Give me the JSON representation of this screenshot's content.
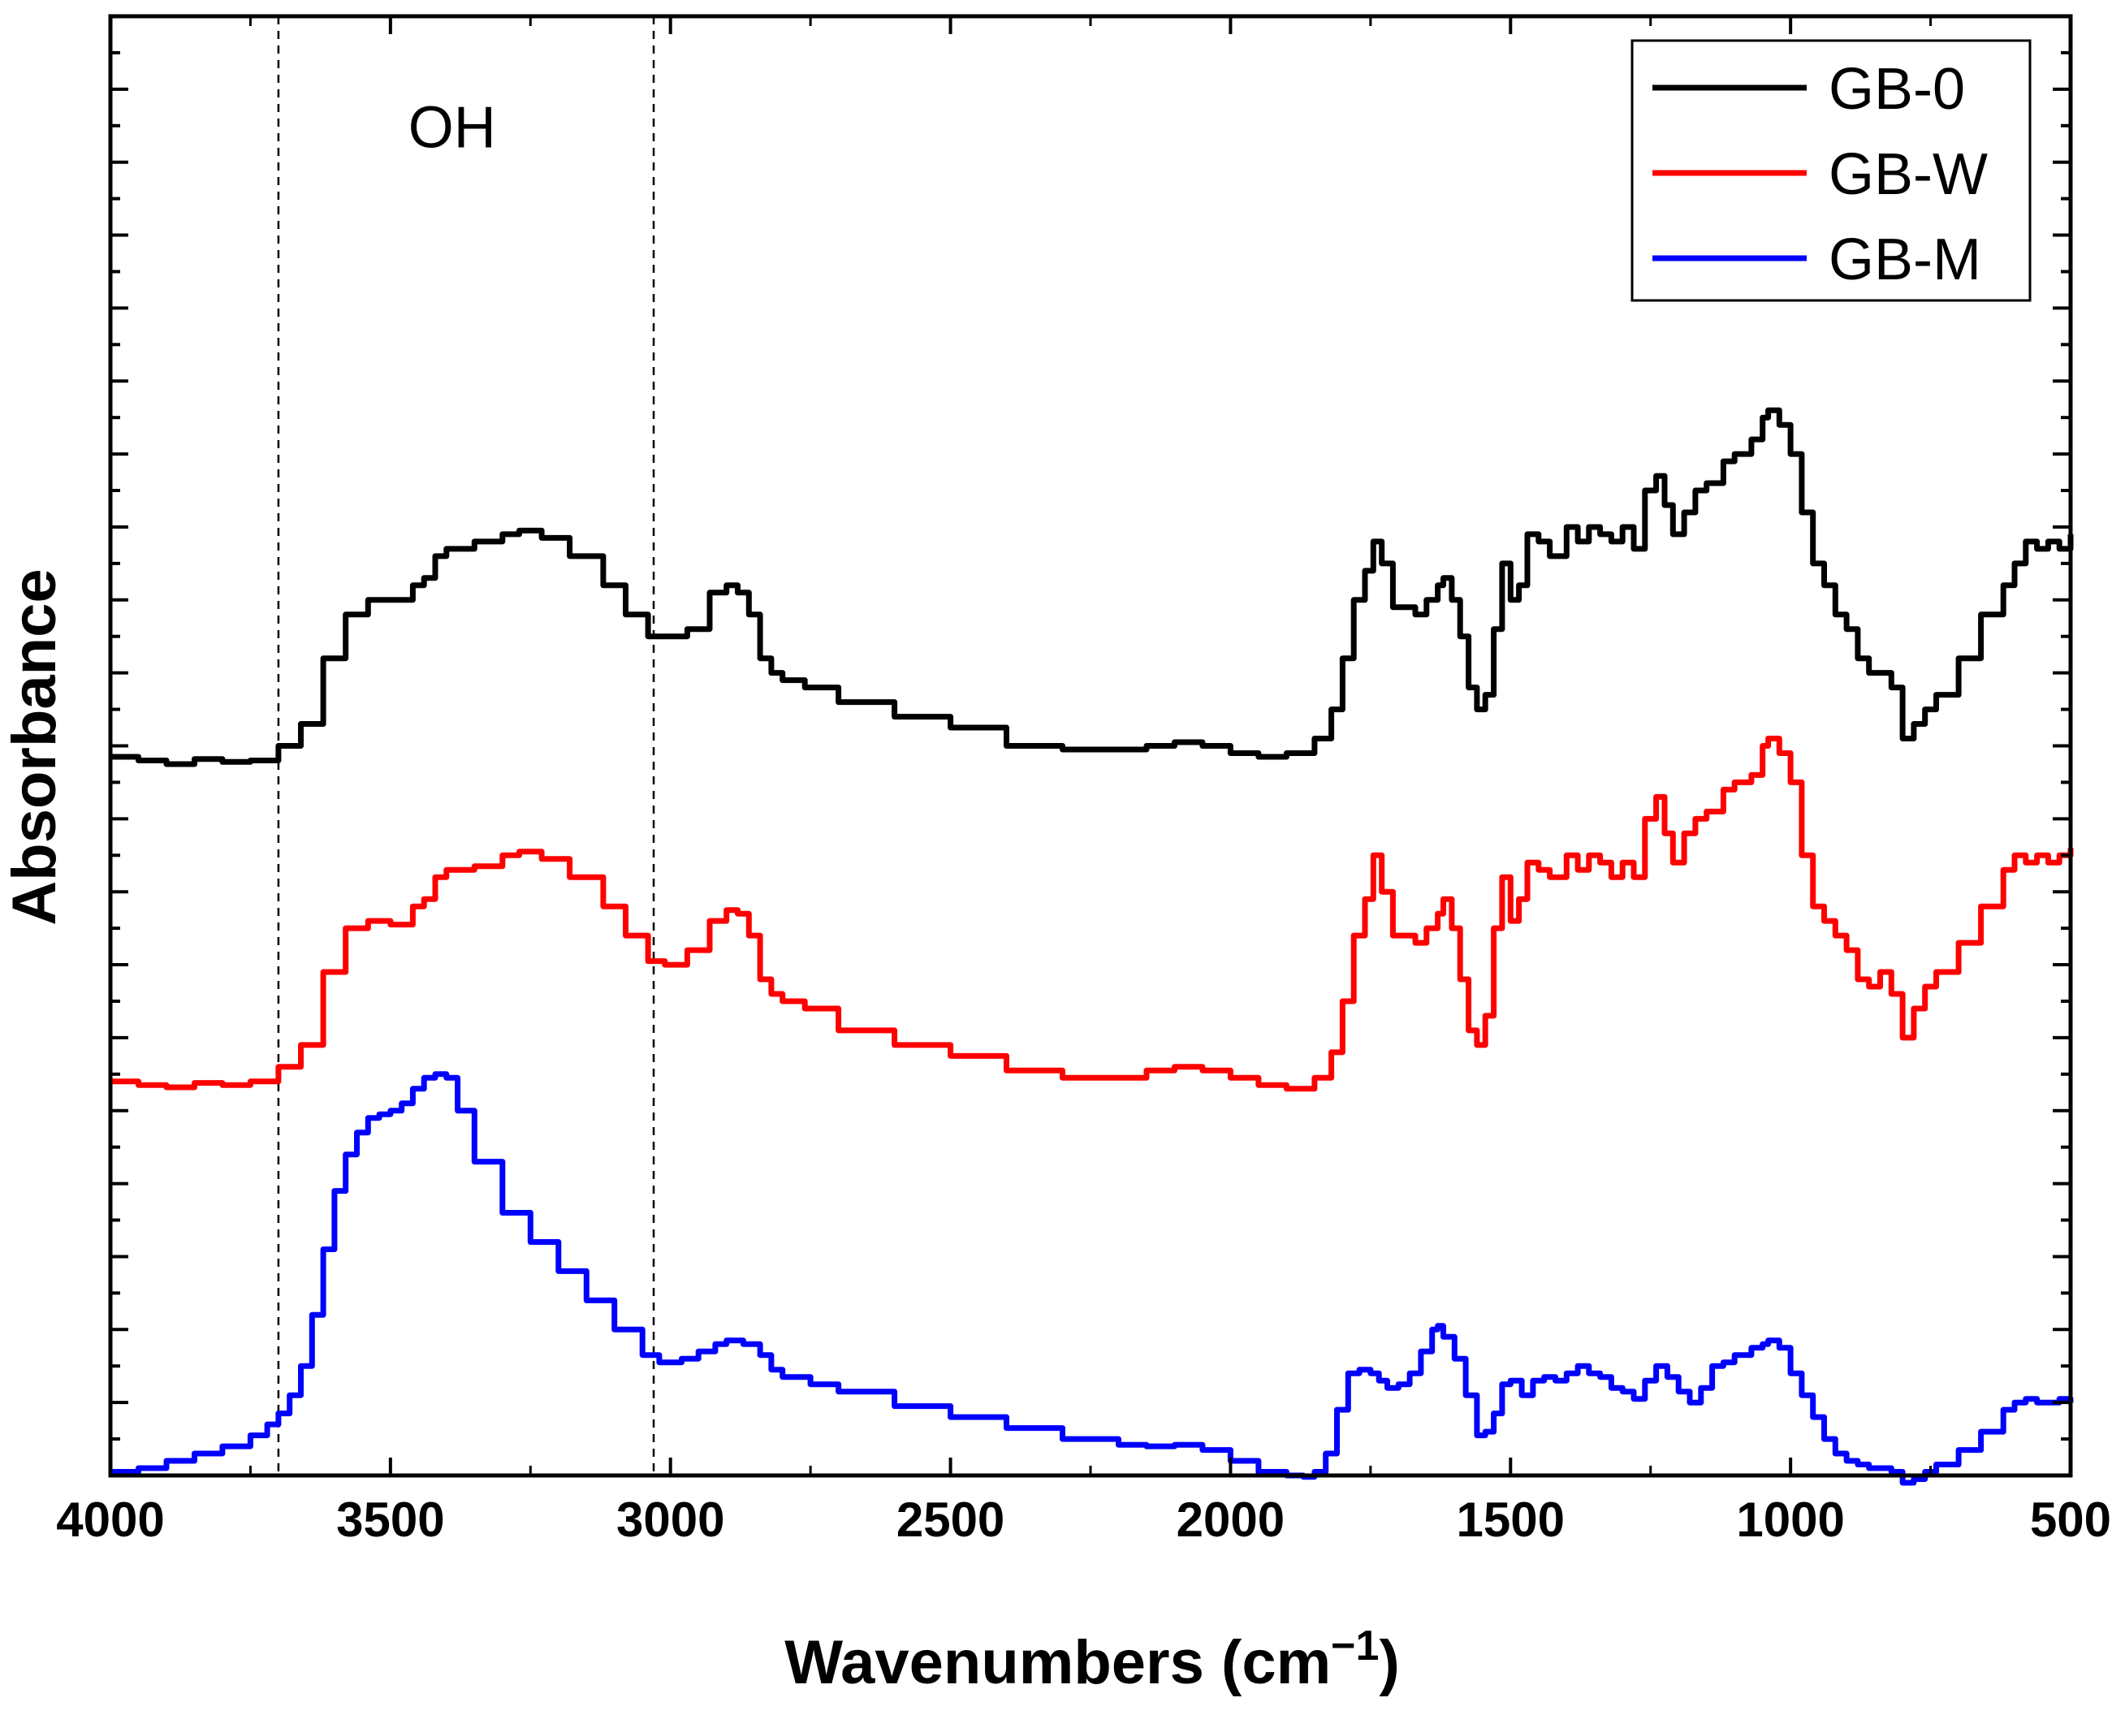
{
  "chart_data": {
    "type": "line",
    "title": "",
    "xlabel": "Wavenumbers (cm",
    "xlabel_sup": "−1",
    "xlabel_close": ")",
    "ylabel": "Absorbance",
    "xlim": [
      4000,
      500
    ],
    "x_reversed": true,
    "ylim": [
      0,
      20
    ],
    "y_tick_labels_visible": false,
    "x_ticks": [
      4000,
      3500,
      3000,
      2500,
      2000,
      1500,
      1000,
      500
    ],
    "x_tick_labels": [
      "4000",
      "3500",
      "3000",
      "2500",
      "2000",
      "1500",
      "1000",
      "500"
    ],
    "grid": false,
    "legend_position": "top-right",
    "reference_lines": [
      {
        "x": 3700,
        "style": "dashed"
      },
      {
        "x": 3030,
        "style": "dashed"
      }
    ],
    "annotations": [
      {
        "text": "OH",
        "x": 3390,
        "y": 18.2
      }
    ],
    "series": [
      {
        "name": "GB-0",
        "color": "#000000",
        "x": [
          4000,
          3950,
          3900,
          3850,
          3800,
          3750,
          3700,
          3660,
          3620,
          3580,
          3540,
          3500,
          3460,
          3440,
          3420,
          3400,
          3350,
          3300,
          3270,
          3230,
          3180,
          3120,
          3080,
          3040,
          3010,
          2970,
          2930,
          2900,
          2880,
          2860,
          2840,
          2820,
          2800,
          2760,
          2700,
          2600,
          2500,
          2400,
          2300,
          2200,
          2150,
          2100,
          2050,
          2000,
          1950,
          1900,
          1850,
          1820,
          1800,
          1780,
          1760,
          1745,
          1730,
          1710,
          1690,
          1670,
          1650,
          1630,
          1620,
          1605,
          1590,
          1575,
          1560,
          1545,
          1530,
          1515,
          1500,
          1485,
          1470,
          1450,
          1430,
          1400,
          1380,
          1360,
          1340,
          1320,
          1300,
          1280,
          1260,
          1240,
          1225,
          1210,
          1190,
          1170,
          1150,
          1120,
          1100,
          1070,
          1050,
          1040,
          1020,
          1000,
          980,
          960,
          940,
          920,
          900,
          880,
          860,
          840,
          820,
          800,
          780,
          760,
          740,
          700,
          660,
          620,
          600,
          580,
          560,
          540,
          520,
          500
        ],
        "y": [
          9.85,
          9.8,
          9.75,
          9.82,
          9.78,
          9.8,
          10.0,
          10.3,
          11.2,
          11.8,
          12.0,
          12.0,
          12.2,
          12.3,
          12.6,
          12.7,
          12.8,
          12.9,
          12.95,
          12.85,
          12.6,
          12.2,
          11.8,
          11.5,
          11.5,
          11.6,
          12.1,
          12.2,
          12.1,
          11.8,
          11.2,
          11.0,
          10.9,
          10.8,
          10.6,
          10.4,
          10.25,
          10.0,
          9.95,
          9.95,
          10.0,
          10.05,
          10.0,
          9.9,
          9.85,
          9.9,
          10.1,
          10.5,
          11.2,
          12.0,
          12.4,
          12.8,
          12.5,
          11.9,
          11.9,
          11.8,
          12.0,
          12.2,
          12.3,
          12.0,
          11.5,
          10.8,
          10.5,
          10.7,
          11.6,
          12.5,
          12.0,
          12.2,
          12.9,
          12.8,
          12.6,
          13.0,
          12.8,
          13.0,
          12.9,
          12.8,
          13.0,
          12.7,
          13.5,
          13.7,
          13.3,
          12.9,
          13.2,
          13.5,
          13.6,
          13.9,
          14.0,
          14.2,
          14.5,
          14.6,
          14.4,
          14.0,
          13.2,
          12.5,
          12.2,
          11.8,
          11.6,
          11.2,
          11.0,
          11.0,
          10.8,
          10.1,
          10.3,
          10.5,
          10.7,
          11.2,
          11.8,
          12.2,
          12.5,
          12.8,
          12.7,
          12.8,
          12.7,
          12.9
        ]
      },
      {
        "name": "GB-W",
        "color": "#ff0000",
        "x": [
          4000,
          3950,
          3900,
          3850,
          3800,
          3750,
          3700,
          3660,
          3620,
          3580,
          3540,
          3500,
          3460,
          3440,
          3420,
          3400,
          3350,
          3300,
          3270,
          3230,
          3180,
          3120,
          3080,
          3040,
          3010,
          2970,
          2930,
          2900,
          2880,
          2860,
          2840,
          2820,
          2800,
          2760,
          2700,
          2600,
          2500,
          2400,
          2300,
          2200,
          2150,
          2100,
          2050,
          2000,
          1950,
          1900,
          1850,
          1820,
          1800,
          1780,
          1760,
          1745,
          1730,
          1710,
          1690,
          1670,
          1650,
          1630,
          1620,
          1605,
          1590,
          1575,
          1560,
          1545,
          1530,
          1515,
          1500,
          1485,
          1470,
          1450,
          1430,
          1400,
          1380,
          1360,
          1340,
          1320,
          1300,
          1280,
          1260,
          1240,
          1225,
          1210,
          1190,
          1170,
          1150,
          1120,
          1100,
          1070,
          1050,
          1040,
          1020,
          1000,
          980,
          960,
          940,
          920,
          900,
          880,
          860,
          840,
          820,
          800,
          780,
          760,
          740,
          700,
          660,
          620,
          600,
          580,
          560,
          540,
          520,
          500
        ],
        "y": [
          5.4,
          5.35,
          5.32,
          5.38,
          5.35,
          5.4,
          5.6,
          5.9,
          6.9,
          7.5,
          7.6,
          7.55,
          7.8,
          7.9,
          8.2,
          8.3,
          8.35,
          8.5,
          8.55,
          8.45,
          8.2,
          7.8,
          7.4,
          7.05,
          7.0,
          7.2,
          7.6,
          7.75,
          7.7,
          7.4,
          6.8,
          6.6,
          6.5,
          6.4,
          6.1,
          5.9,
          5.75,
          5.55,
          5.45,
          5.45,
          5.55,
          5.6,
          5.55,
          5.45,
          5.35,
          5.3,
          5.45,
          5.8,
          6.5,
          7.4,
          7.9,
          8.5,
          8.0,
          7.4,
          7.4,
          7.3,
          7.5,
          7.7,
          7.9,
          7.5,
          6.8,
          6.1,
          5.9,
          6.3,
          7.5,
          8.2,
          7.6,
          7.9,
          8.4,
          8.3,
          8.2,
          8.5,
          8.3,
          8.5,
          8.4,
          8.2,
          8.4,
          8.2,
          9.0,
          9.3,
          8.8,
          8.4,
          8.8,
          9.0,
          9.1,
          9.4,
          9.5,
          9.6,
          10.0,
          10.1,
          9.9,
          9.5,
          8.5,
          7.8,
          7.6,
          7.4,
          7.2,
          6.8,
          6.7,
          6.9,
          6.6,
          6.0,
          6.4,
          6.7,
          6.9,
          7.3,
          7.8,
          8.3,
          8.5,
          8.4,
          8.5,
          8.4,
          8.5,
          8.6
        ]
      },
      {
        "name": "GB-M",
        "color": "#0000ff",
        "x": [
          4000,
          3950,
          3900,
          3850,
          3800,
          3750,
          3720,
          3700,
          3680,
          3660,
          3640,
          3620,
          3600,
          3580,
          3560,
          3540,
          3520,
          3500,
          3480,
          3460,
          3440,
          3420,
          3410,
          3400,
          3380,
          3350,
          3300,
          3250,
          3200,
          3150,
          3100,
          3050,
          3020,
          3000,
          2980,
          2950,
          2920,
          2900,
          2870,
          2840,
          2820,
          2800,
          2750,
          2700,
          2600,
          2500,
          2400,
          2300,
          2200,
          2150,
          2100,
          2050,
          2000,
          1950,
          1900,
          1870,
          1850,
          1830,
          1810,
          1790,
          1770,
          1750,
          1735,
          1720,
          1700,
          1680,
          1660,
          1640,
          1630,
          1620,
          1600,
          1580,
          1560,
          1545,
          1530,
          1515,
          1500,
          1480,
          1460,
          1440,
          1420,
          1400,
          1380,
          1360,
          1340,
          1320,
          1300,
          1280,
          1260,
          1240,
          1220,
          1200,
          1180,
          1160,
          1140,
          1120,
          1100,
          1070,
          1050,
          1040,
          1020,
          1000,
          980,
          960,
          940,
          920,
          900,
          880,
          860,
          840,
          820,
          800,
          780,
          760,
          740,
          700,
          660,
          620,
          600,
          580,
          560,
          540,
          520,
          500
        ],
        "y": [
          0.05,
          0.1,
          0.2,
          0.3,
          0.4,
          0.55,
          0.7,
          0.85,
          1.1,
          1.5,
          2.2,
          3.1,
          3.9,
          4.4,
          4.7,
          4.9,
          4.95,
          5.0,
          5.1,
          5.3,
          5.45,
          5.5,
          5.5,
          5.45,
          5.0,
          4.3,
          3.6,
          3.2,
          2.8,
          2.4,
          2.0,
          1.65,
          1.55,
          1.55,
          1.6,
          1.7,
          1.8,
          1.85,
          1.8,
          1.65,
          1.45,
          1.35,
          1.25,
          1.15,
          0.95,
          0.8,
          0.65,
          0.5,
          0.42,
          0.4,
          0.42,
          0.35,
          0.2,
          0.05,
          0.0,
          -0.02,
          0.05,
          0.3,
          0.9,
          1.4,
          1.45,
          1.4,
          1.3,
          1.2,
          1.25,
          1.4,
          1.7,
          2.0,
          2.05,
          1.9,
          1.6,
          1.1,
          0.55,
          0.6,
          0.85,
          1.25,
          1.3,
          1.1,
          1.3,
          1.35,
          1.3,
          1.4,
          1.5,
          1.4,
          1.35,
          1.2,
          1.15,
          1.05,
          1.3,
          1.5,
          1.35,
          1.15,
          1.0,
          1.2,
          1.5,
          1.55,
          1.65,
          1.75,
          1.8,
          1.85,
          1.75,
          1.4,
          1.1,
          0.8,
          0.5,
          0.3,
          0.2,
          0.15,
          0.1,
          0.1,
          0.05,
          -0.1,
          -0.05,
          0.05,
          0.15,
          0.35,
          0.6,
          0.9,
          1.0,
          1.05,
          1.0,
          1.0,
          1.05,
          1.0
        ]
      }
    ]
  }
}
